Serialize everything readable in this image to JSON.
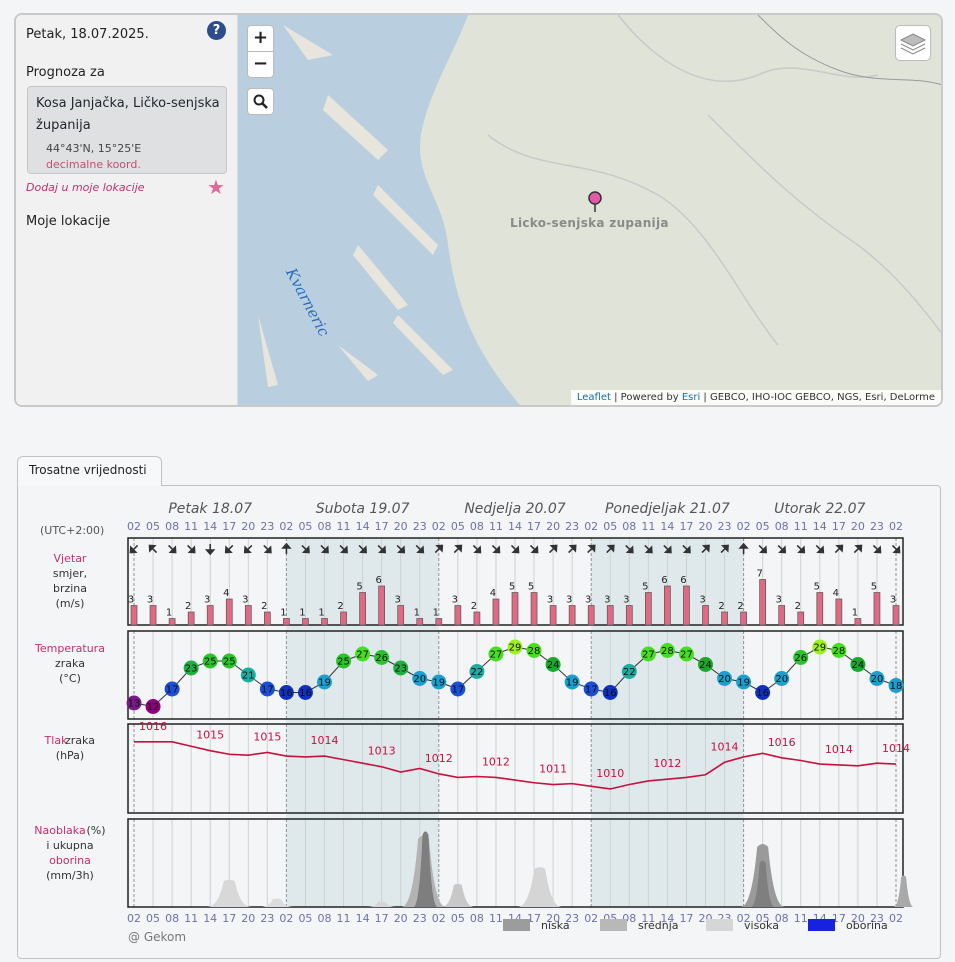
{
  "sidebar": {
    "date": "Petak, 18.07.2025.",
    "forecast_label": "Prognoza za",
    "location_name": "Kosa Janjačka, Ličko-senjska županija",
    "coords": "44°43'N, 15°25'E",
    "decimal_link": "decimalne koord.",
    "add_link": "Dodaj u moje lokacije",
    "my_locations": "Moje lokacije"
  },
  "map": {
    "zoom_in": "+",
    "zoom_out": "−",
    "region_label": "Licko-senjska zupanija",
    "sea_label": "Kvarneric",
    "attribution": {
      "leaflet": "Leaflet",
      "sep1": " | Powered by ",
      "esri": "Esri",
      "rest": " | GEBCO, IHO-IOC GEBCO, NGS, Esri, DeLorme"
    }
  },
  "forecast": {
    "tab_label": "Trosatne vrijednosti",
    "timezone": "(UTC+2:00)",
    "days": [
      "Petak 18.07",
      "Subota 19.07",
      "Nedjelja 20.07",
      "Ponedjeljak 21.07",
      "Utorak 22.07"
    ],
    "hours": [
      "02",
      "05",
      "08",
      "11",
      "14",
      "17",
      "20",
      "23",
      "02",
      "05",
      "08",
      "11",
      "14",
      "17",
      "20",
      "23",
      "02",
      "05",
      "08",
      "11",
      "14",
      "17",
      "20",
      "23",
      "02",
      "05",
      "08",
      "11",
      "14",
      "17",
      "20",
      "23",
      "02",
      "05",
      "08",
      "11",
      "14",
      "17",
      "20",
      "23",
      "02"
    ],
    "labels": {
      "wind_title": "Vjetar",
      "wind_l1": "smjer,",
      "wind_l2": "brzina",
      "wind_l3": "(m/s)",
      "temp_title": "Temperatura",
      "temp_l1": "zraka",
      "temp_l2": "(°C)",
      "press_title": "Tlak",
      "press_l1": "zraka",
      "press_l2": "(hPa)",
      "cloud_title": "Naoblaka",
      "cloud_pct": "(%)",
      "cloud_l1": "i ukupna",
      "cloud_l2": "oborina",
      "cloud_l3": "(mm/3h)"
    },
    "legend": [
      "niska",
      "srednja",
      "visoka",
      "oborina"
    ],
    "credit": "@ Gekom",
    "colors": {
      "accent": "#c0306b",
      "wind_bar": "#e06a83",
      "pressure": "#c8103e",
      "night": "#dfe9ec"
    }
  },
  "chart_data": {
    "type": "line",
    "x": [
      "18.07 02",
      "18.07 05",
      "18.07 08",
      "18.07 11",
      "18.07 14",
      "18.07 17",
      "18.07 20",
      "18.07 23",
      "19.07 02",
      "19.07 05",
      "19.07 08",
      "19.07 11",
      "19.07 14",
      "19.07 17",
      "19.07 20",
      "19.07 23",
      "20.07 02",
      "20.07 05",
      "20.07 08",
      "20.07 11",
      "20.07 14",
      "20.07 17",
      "20.07 20",
      "20.07 23",
      "21.07 02",
      "21.07 05",
      "21.07 08",
      "21.07 11",
      "21.07 14",
      "21.07 17",
      "21.07 20",
      "21.07 23",
      "22.07 02",
      "22.07 05",
      "22.07 08",
      "22.07 11",
      "22.07 14",
      "22.07 17",
      "22.07 20",
      "22.07 23",
      "23.07 02"
    ],
    "series": [
      {
        "name": "Vjetar",
        "values": [
          3,
          3,
          1,
          2,
          3,
          4,
          3,
          2,
          1,
          1,
          1,
          2,
          5,
          6,
          3,
          1,
          1,
          3,
          2,
          4,
          5,
          5,
          3,
          3,
          3,
          3,
          3,
          5,
          6,
          6,
          3,
          2,
          2,
          7,
          3,
          2,
          5,
          4,
          1,
          5,
          3
        ]
      },
      {
        "name": "Temperatura",
        "values": [
          13,
          12,
          17,
          23,
          25,
          25,
          21,
          17,
          16,
          16,
          19,
          25,
          27,
          26,
          23,
          20,
          19,
          17,
          22,
          27,
          29,
          28,
          24,
          19,
          17,
          16,
          22,
          27,
          28,
          27,
          24,
          20,
          19,
          16,
          20,
          26,
          29,
          28,
          24,
          20,
          18
        ]
      },
      {
        "name": "Tlak",
        "values": [
          1016,
          1016,
          1016,
          1015.5,
          1015,
          1014.6,
          1014.5,
          1014.8,
          1014.4,
          1014.3,
          1014.4,
          1014,
          1013.6,
          1013.2,
          1012.6,
          1013,
          1012.4,
          1012,
          1012.1,
          1012,
          1011.7,
          1011.4,
          1011.2,
          1011.3,
          1011,
          1010.7,
          1011.2,
          1011.6,
          1011.8,
          1012,
          1012.3,
          1013.7,
          1014.3,
          1014.7,
          1014.2,
          1013.9,
          1013.5,
          1013.4,
          1013.3,
          1013.6,
          1013.5
        ]
      }
    ],
    "pressure_labels": [
      "1016",
      "1015",
      "1015",
      "1014",
      "1013",
      "1012",
      "1012",
      "1011",
      "1010",
      "1012",
      "1014",
      "1016",
      "1014",
      "1014"
    ],
    "wind_dir": [
      135,
      225,
      45,
      45,
      90,
      135,
      135,
      45,
      270,
      45,
      45,
      45,
      45,
      45,
      45,
      45,
      315,
      315,
      45,
      45,
      45,
      45,
      315,
      315,
      315,
      315,
      45,
      45,
      45,
      45,
      315,
      315,
      270,
      45,
      45,
      45,
      45,
      315,
      315,
      45,
      45
    ]
  }
}
